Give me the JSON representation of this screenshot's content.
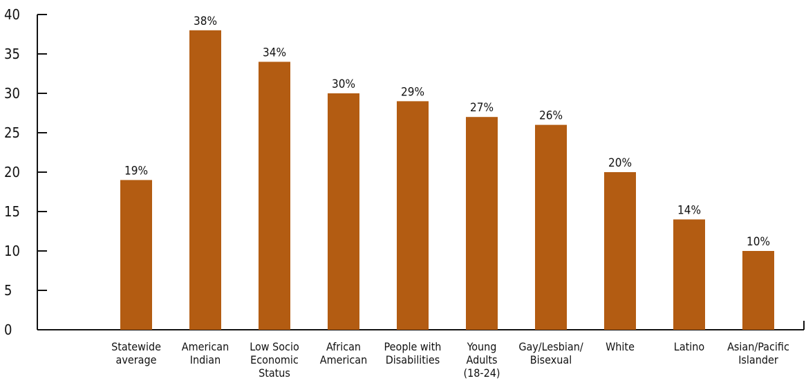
{
  "chart_data": {
    "type": "bar",
    "title": "",
    "xlabel": "",
    "ylabel": "",
    "ylim": [
      0,
      40
    ],
    "yticks": [
      0,
      5,
      10,
      15,
      20,
      25,
      30,
      35,
      40
    ],
    "grid": false,
    "legend": "none",
    "bar_color": "#b35c12",
    "categories": [
      [
        "Statewide",
        "average"
      ],
      [
        "American",
        "Indian"
      ],
      [
        "Low Socio",
        "Economic",
        "Status"
      ],
      [
        "African",
        "American"
      ],
      [
        "People with",
        "Disabilities"
      ],
      [
        "Young",
        "Adults",
        "(18-24)"
      ],
      [
        "Gay/Lesbian/",
        "Bisexual"
      ],
      [
        "White"
      ],
      [
        "Latino"
      ],
      [
        "Asian/Pacific",
        "Islander"
      ]
    ],
    "values": [
      19,
      38,
      34,
      30,
      29,
      27,
      26,
      20,
      14,
      10
    ],
    "data_labels": [
      "19%",
      "38%",
      "34%",
      "30%",
      "29%",
      "27%",
      "26%",
      "20%",
      "14%",
      "10%"
    ]
  }
}
